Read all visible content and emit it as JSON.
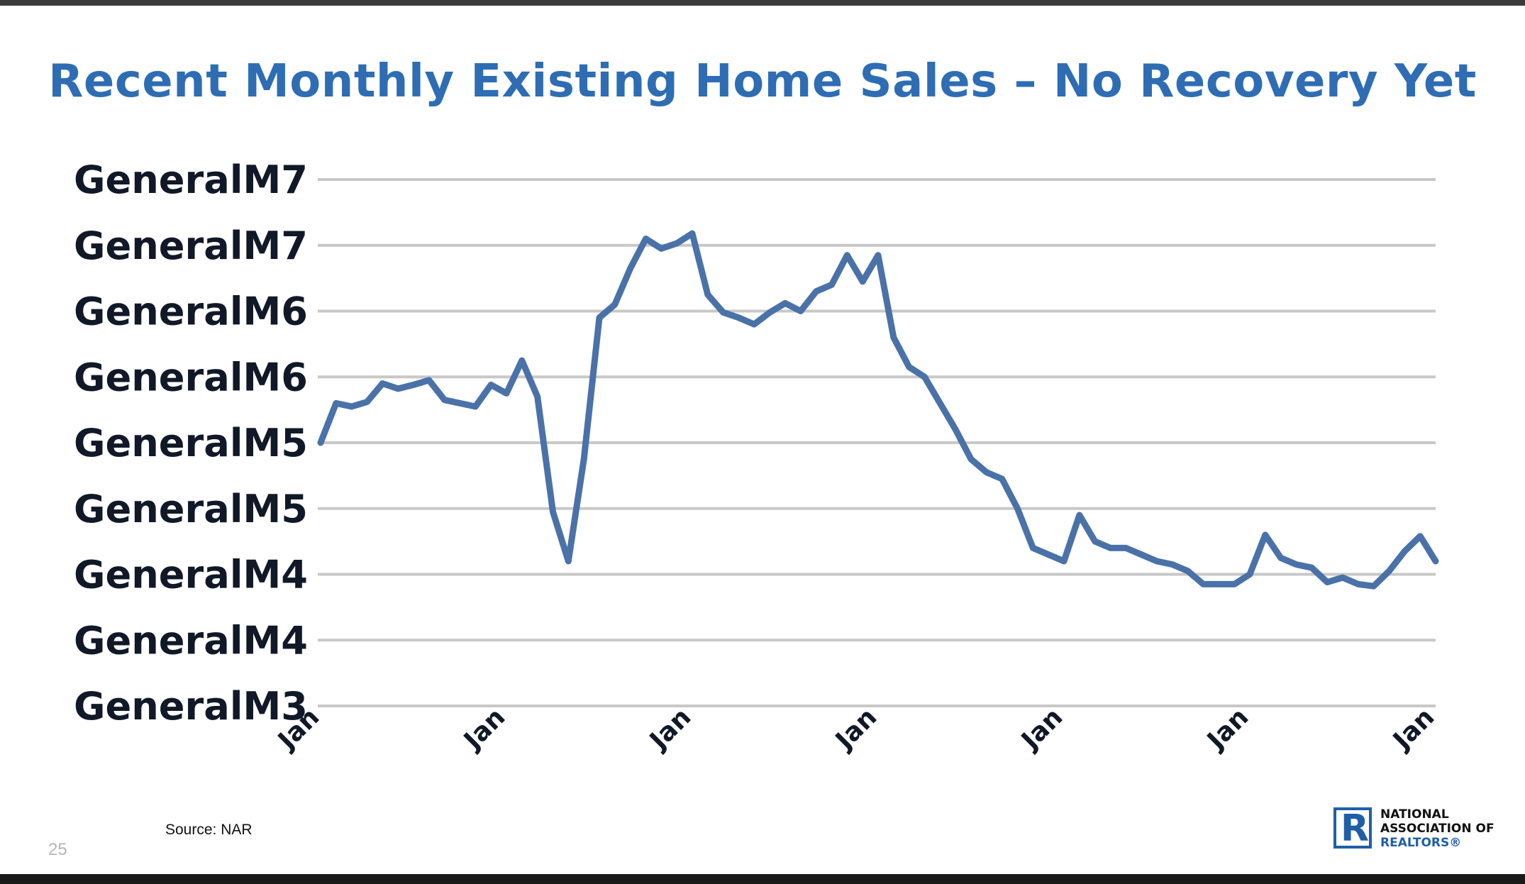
{
  "slide": {
    "title": "Recent Monthly Existing Home Sales – No Recovery Yet",
    "source": "Source: NAR",
    "page_number": "25"
  },
  "logo": {
    "line1": "NATIONAL",
    "line2": "ASSOCIATION OF",
    "line3": "REALTORS®",
    "mark_icon": "realtor-r-logo-icon",
    "brand_color": "#1f5fa8"
  },
  "colors": {
    "title": "#2e6db4",
    "line": "#4a72a8",
    "grid": "#c8c8c8",
    "tick_text": "#111827"
  },
  "chart_data": {
    "type": "line",
    "title": "Recent Monthly Existing Home Sales – No Recovery Yet",
    "xlabel": "",
    "ylabel": "",
    "grid": true,
    "y_tick_labels": [
      "GeneralM7",
      "GeneralM7",
      "GeneralM6",
      "GeneralM6",
      "GeneralM5",
      "GeneralM5",
      "GeneralM4",
      "GeneralM4",
      "GeneralM3"
    ],
    "x_tick_labels": [
      "Jan",
      "Jan",
      "Jan",
      "Jan",
      "Jan",
      "Jan",
      "Jan"
    ],
    "ylim": [
      0,
      8
    ],
    "x": [
      0,
      1,
      2,
      3,
      4,
      5,
      6,
      7,
      8,
      9,
      10,
      11,
      12,
      13,
      14,
      15,
      16,
      17,
      18,
      19,
      20,
      21,
      22,
      23,
      24,
      25,
      26,
      27,
      28,
      29,
      30,
      31,
      32,
      33,
      34,
      35,
      36,
      37,
      38,
      39,
      40,
      41,
      42,
      43,
      44,
      45,
      46,
      47,
      48,
      49,
      50,
      51,
      52,
      53,
      54,
      55,
      56,
      57,
      58,
      59,
      60,
      61,
      62,
      63,
      64,
      65,
      66,
      67,
      68,
      69,
      70,
      71,
      72
    ],
    "series": [
      {
        "values": [
          4.0,
          4.6,
          4.55,
          4.62,
          4.9,
          4.82,
          4.88,
          4.95,
          4.65,
          4.6,
          4.55,
          4.88,
          4.75,
          5.25,
          4.7,
          2.95,
          2.2,
          3.75,
          5.9,
          6.1,
          6.65,
          7.1,
          6.95,
          7.03,
          7.18,
          6.25,
          5.98,
          5.9,
          5.8,
          5.98,
          6.12,
          6.0,
          6.3,
          6.4,
          6.85,
          6.45,
          6.85,
          5.6,
          5.15,
          5.0,
          4.6,
          4.2,
          3.75,
          3.55,
          3.45,
          3.0,
          2.4,
          2.3,
          2.2,
          2.9,
          2.5,
          2.4,
          2.4,
          2.3,
          2.2,
          2.15,
          2.05,
          1.85,
          1.85,
          1.85,
          2.0,
          2.6,
          2.25,
          2.15,
          2.1,
          1.88,
          1.95,
          1.85,
          1.82,
          2.05,
          2.35,
          2.58,
          2.2
        ]
      }
    ]
  }
}
